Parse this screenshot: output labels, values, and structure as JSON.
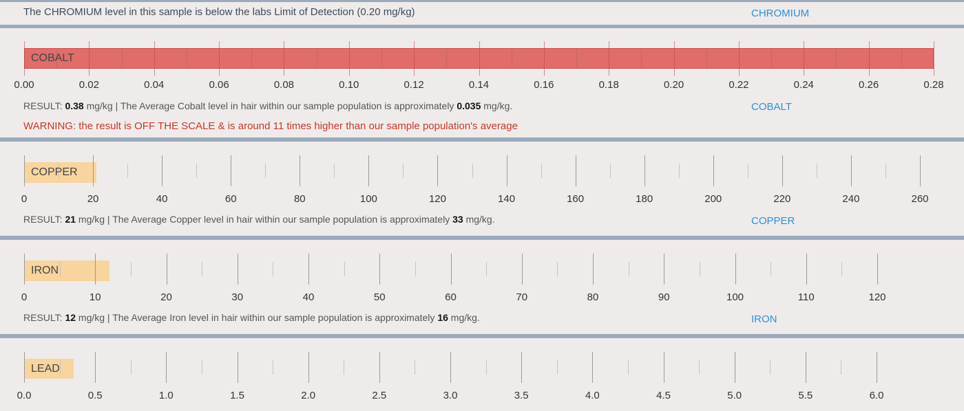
{
  "chromium": {
    "message": "The CHROMIUM level in this sample is below the labs Limit of Detection (0.20 mg/kg)",
    "link": "CHROMIUM"
  },
  "chart_data": [
    {
      "type": "bar",
      "category": "COBALT",
      "value": 0.38,
      "xlim": [
        0,
        0.28
      ],
      "ticks": [
        "0.00",
        "0.02",
        "0.04",
        "0.06",
        "0.08",
        "0.10",
        "0.12",
        "0.14",
        "0.16",
        "0.18",
        "0.20",
        "0.22",
        "0.24",
        "0.26",
        "0.28"
      ],
      "bar_color": "#e06d6a",
      "result_prefix": "RESULT:",
      "result_value": "0.38",
      "result_mid": "mg/kg | The Average Cobalt level in hair within our sample population is approximately",
      "average_value": "0.035",
      "result_suffix": "mg/kg.",
      "link": "COBALT",
      "warning": "WARNING: the result is OFF THE SCALE & is around 11 times higher than our sample population's average"
    },
    {
      "type": "bar",
      "category": "COPPER",
      "value": 21,
      "xlim": [
        0,
        260
      ],
      "ticks": [
        "0",
        "20",
        "40",
        "60",
        "80",
        "100",
        "120",
        "140",
        "160",
        "180",
        "200",
        "220",
        "240",
        "260"
      ],
      "bar_color": "#f8d49e",
      "result_prefix": "RESULT:",
      "result_value": "21",
      "result_mid": "mg/kg | The Average Copper level in hair within our sample population is approximately",
      "average_value": "33",
      "result_suffix": "mg/kg.",
      "link": "COPPER"
    },
    {
      "type": "bar",
      "category": "IRON",
      "value": 12,
      "xlim": [
        0,
        120
      ],
      "ticks": [
        "0",
        "10",
        "20",
        "30",
        "40",
        "50",
        "60",
        "70",
        "80",
        "90",
        "100",
        "110",
        "120"
      ],
      "bar_color": "#f8d49e",
      "result_prefix": "RESULT:",
      "result_value": "12",
      "result_mid": "mg/kg | The Average Iron level in hair within our sample population is approximately",
      "average_value": "16",
      "result_suffix": "mg/kg.",
      "link": "IRON"
    },
    {
      "type": "bar",
      "category": "LEAD",
      "value": 0.35,
      "xlim": [
        0,
        6.0
      ],
      "ticks": [
        "0.0",
        "0.5",
        "1.0",
        "1.5",
        "2.0",
        "2.5",
        "3.0",
        "3.5",
        "4.0",
        "4.5",
        "5.0",
        "5.5",
        "6.0"
      ],
      "bar_color": "#f8d49e"
    }
  ]
}
